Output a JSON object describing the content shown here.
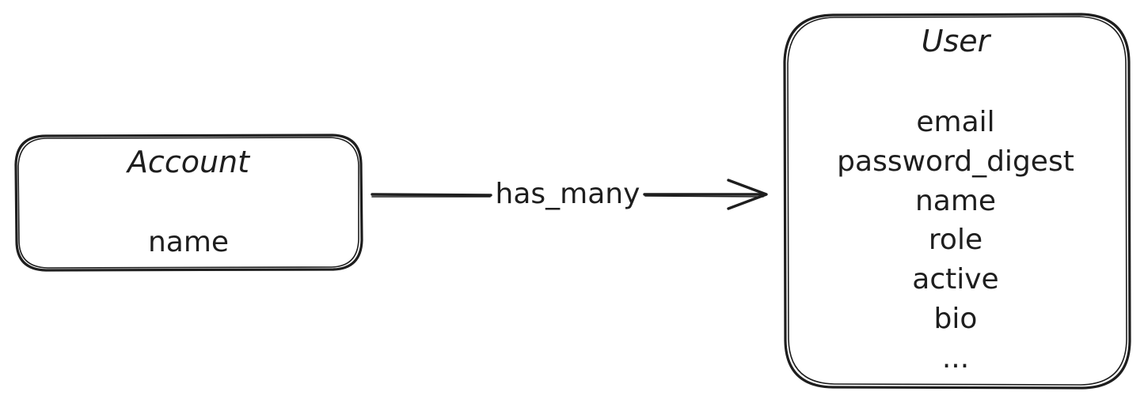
{
  "entities": {
    "account": {
      "title": "Account",
      "fields": [
        "name"
      ]
    },
    "user": {
      "title": "User",
      "fields": [
        "email",
        "password_digest",
        "name",
        "role",
        "active",
        "bio",
        "..."
      ]
    }
  },
  "relationship": {
    "label": "has_many"
  },
  "colors": {
    "stroke": "#1e1e1e",
    "background": "#ffffff"
  }
}
